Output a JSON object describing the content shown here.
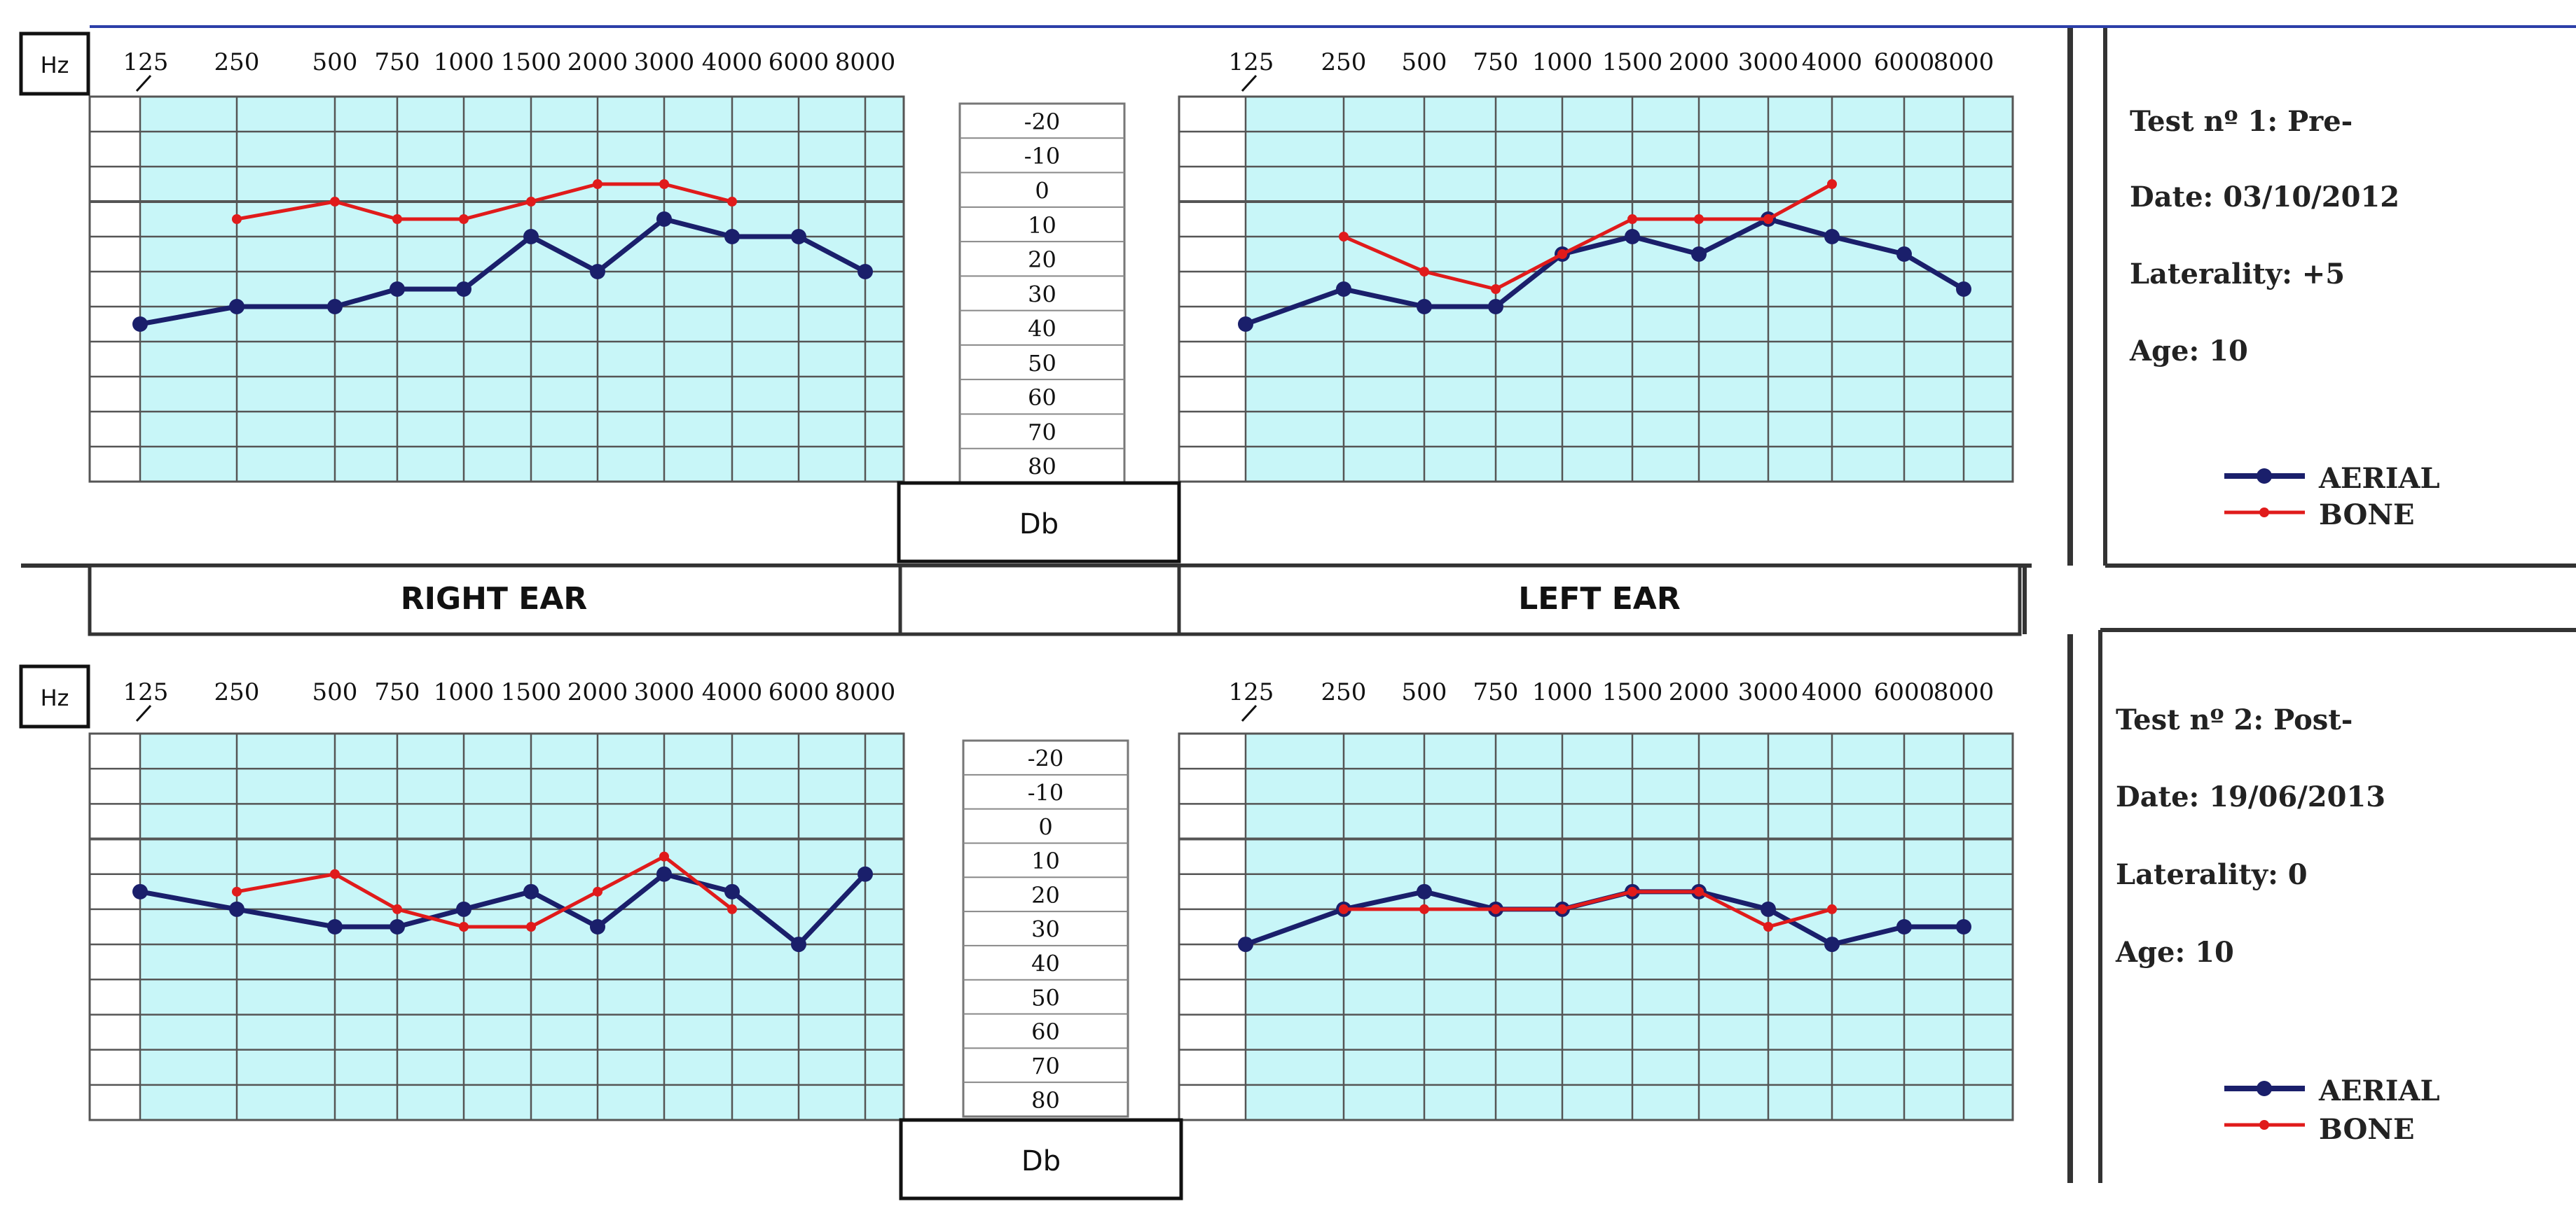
{
  "axis": {
    "hz_label": "Hz",
    "db_label": "Db",
    "freq_ticks": [
      "125",
      "250",
      "500",
      "750",
      "1000",
      "1500",
      "2000",
      "3000",
      "4000",
      "6000",
      "8000"
    ],
    "db_ticks": [
      "-20",
      "-10",
      "0",
      "10",
      "20",
      "30",
      "40",
      "50",
      "60",
      "70",
      "80"
    ]
  },
  "ear_labels": {
    "right": "RIGHT EAR",
    "left": "LEFT EAR"
  },
  "tests": [
    {
      "title": "Test nº 1: Pre-",
      "date": "Date: 03/10/2012",
      "laterality": "Laterality: +5",
      "age": "Age: 10",
      "legend": [
        "AERIAL",
        "BONE"
      ]
    },
    {
      "title": "Test nº 2: Post-",
      "date": "Date: 19/06/2013",
      "laterality": "Laterality:  0",
      "age": "Age: 10",
      "legend": [
        "AERIAL",
        "BONE"
      ]
    }
  ],
  "colors": {
    "aerial": "#1a1f6b",
    "bone": "#e01b1b",
    "grid_fill": "#c8f6f8",
    "grid_line": "#555555"
  },
  "chart_data": [
    {
      "type": "line",
      "test": 1,
      "ear": "right",
      "x": [
        "125",
        "250",
        "500",
        "750",
        "1000",
        "1500",
        "2000",
        "3000",
        "4000",
        "6000",
        "8000"
      ],
      "ylim": [
        -20,
        80
      ],
      "y_inverted": true,
      "series": [
        {
          "name": "AERIAL",
          "values": [
            40,
            35,
            35,
            30,
            30,
            15,
            25,
            10,
            15,
            15,
            25
          ]
        },
        {
          "name": "BONE",
          "values": [
            null,
            10,
            5,
            10,
            10,
            5,
            0,
            0,
            5,
            null,
            null
          ]
        }
      ]
    },
    {
      "type": "line",
      "test": 1,
      "ear": "left",
      "x": [
        "125",
        "250",
        "500",
        "750",
        "1000",
        "1500",
        "2000",
        "3000",
        "4000",
        "6000",
        "8000"
      ],
      "ylim": [
        -20,
        80
      ],
      "y_inverted": true,
      "series": [
        {
          "name": "AERIAL",
          "values": [
            40,
            30,
            35,
            35,
            20,
            15,
            20,
            10,
            15,
            20,
            30
          ]
        },
        {
          "name": "BONE",
          "values": [
            null,
            15,
            25,
            30,
            20,
            10,
            10,
            10,
            0,
            null,
            null
          ]
        }
      ]
    },
    {
      "type": "line",
      "test": 2,
      "ear": "right",
      "x": [
        "125",
        "250",
        "500",
        "750",
        "1000",
        "1500",
        "2000",
        "3000",
        "4000",
        "6000",
        "8000"
      ],
      "ylim": [
        -20,
        80
      ],
      "y_inverted": true,
      "series": [
        {
          "name": "AERIAL",
          "values": [
            20,
            25,
            30,
            30,
            25,
            20,
            30,
            15,
            20,
            35,
            15
          ]
        },
        {
          "name": "BONE",
          "values": [
            null,
            20,
            15,
            25,
            30,
            30,
            20,
            10,
            25,
            null,
            null
          ]
        }
      ]
    },
    {
      "type": "line",
      "test": 2,
      "ear": "left",
      "x": [
        "125",
        "250",
        "500",
        "750",
        "1000",
        "1500",
        "2000",
        "3000",
        "4000",
        "6000",
        "8000"
      ],
      "ylim": [
        -20,
        80
      ],
      "y_inverted": true,
      "series": [
        {
          "name": "AERIAL",
          "values": [
            35,
            25,
            20,
            25,
            25,
            20,
            20,
            25,
            35,
            30,
            30
          ]
        },
        {
          "name": "BONE",
          "values": [
            null,
            25,
            25,
            25,
            25,
            20,
            20,
            30,
            25,
            null,
            null
          ]
        }
      ]
    }
  ]
}
